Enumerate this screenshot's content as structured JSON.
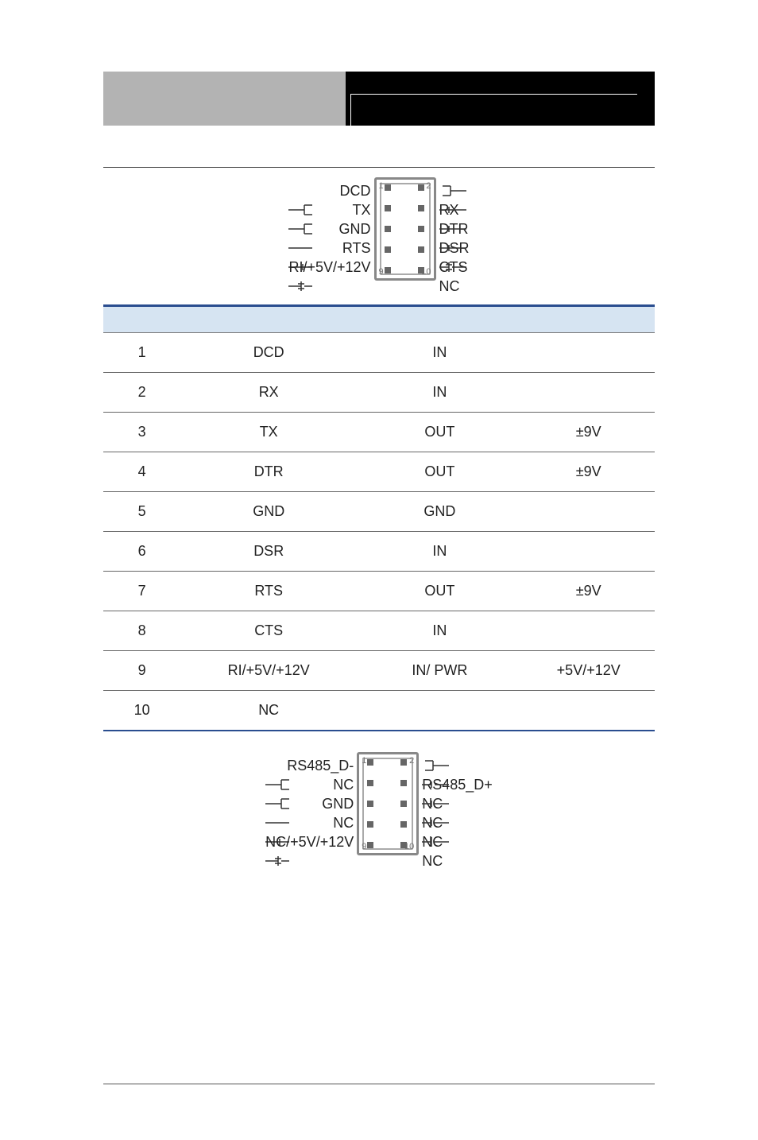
{
  "pinout_rs232": {
    "left": [
      "DCD",
      "TX",
      "GND",
      "RTS",
      "RI/+5V/+12V"
    ],
    "right": [
      "RX",
      "DTR",
      "DSR",
      "CTS",
      "NC"
    ],
    "corner_tl": "1",
    "corner_tr": "2",
    "corner_bl": "9",
    "corner_br": "10"
  },
  "table": {
    "headers": [
      "",
      "",
      "",
      ""
    ],
    "rows": [
      {
        "pin": "1",
        "name": "DCD",
        "dir": "IN",
        "lvl": ""
      },
      {
        "pin": "2",
        "name": "RX",
        "dir": "IN",
        "lvl": ""
      },
      {
        "pin": "3",
        "name": "TX",
        "dir": "OUT",
        "lvl": "±9V"
      },
      {
        "pin": "4",
        "name": "DTR",
        "dir": "OUT",
        "lvl": "±9V"
      },
      {
        "pin": "5",
        "name": "GND",
        "dir": "GND",
        "lvl": ""
      },
      {
        "pin": "6",
        "name": "DSR",
        "dir": "IN",
        "lvl": ""
      },
      {
        "pin": "7",
        "name": "RTS",
        "dir": "OUT",
        "lvl": "±9V"
      },
      {
        "pin": "8",
        "name": "CTS",
        "dir": "IN",
        "lvl": ""
      },
      {
        "pin": "9",
        "name": "RI/+5V/+12V",
        "dir": "IN/ PWR",
        "lvl": "+5V/+12V"
      },
      {
        "pin": "10",
        "name": "NC",
        "dir": "",
        "lvl": ""
      }
    ]
  },
  "pinout_rs485": {
    "left": [
      "RS485_D-",
      "NC",
      "GND",
      "NC",
      "NC/+5V/+12V"
    ],
    "right": [
      "RS485_D+",
      "NC",
      "NC",
      "NC",
      "NC"
    ],
    "corner_tl": "1",
    "corner_tr": "2",
    "corner_bl": "9",
    "corner_br": "10"
  },
  "colors": {
    "header_grey": "#b3b3b3",
    "header_black": "#000000",
    "table_head_bg": "#d6e4f2",
    "table_border_strong": "#2a4d8f"
  }
}
